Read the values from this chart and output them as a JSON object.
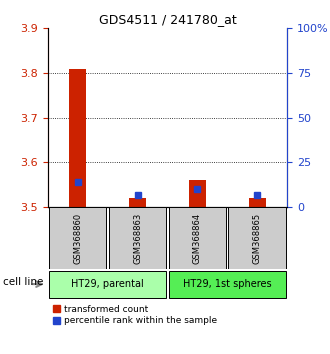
{
  "title": "GDS4511 / 241780_at",
  "samples": [
    "GSM368860",
    "GSM368863",
    "GSM368864",
    "GSM368865"
  ],
  "transformed_counts": [
    3.81,
    3.52,
    3.56,
    3.52
  ],
  "percentile_ranks": [
    14,
    7,
    10,
    7
  ],
  "ylim_left": [
    3.5,
    3.9
  ],
  "ylim_right": [
    0,
    100
  ],
  "yticks_left": [
    3.5,
    3.6,
    3.7,
    3.8,
    3.9
  ],
  "yticks_right": [
    0,
    25,
    50,
    75,
    100
  ],
  "ytick_labels_right": [
    "0",
    "25",
    "50",
    "75",
    "100%"
  ],
  "red_color": "#cc2200",
  "blue_color": "#2244cc",
  "cell_line_groups": [
    {
      "label": "HT29, parental",
      "samples": [
        0,
        1
      ],
      "color": "#aaffaa"
    },
    {
      "label": "HT29, 1st spheres",
      "samples": [
        2,
        3
      ],
      "color": "#55ee55"
    }
  ],
  "sample_box_color": "#cccccc",
  "legend_red_label": "transformed count",
  "legend_blue_label": "percentile rank within the sample",
  "cell_line_label": "cell line",
  "left_tick_color": "#cc2200",
  "right_tick_color": "#2244cc",
  "grid_yticks": [
    3.6,
    3.7,
    3.8
  ]
}
